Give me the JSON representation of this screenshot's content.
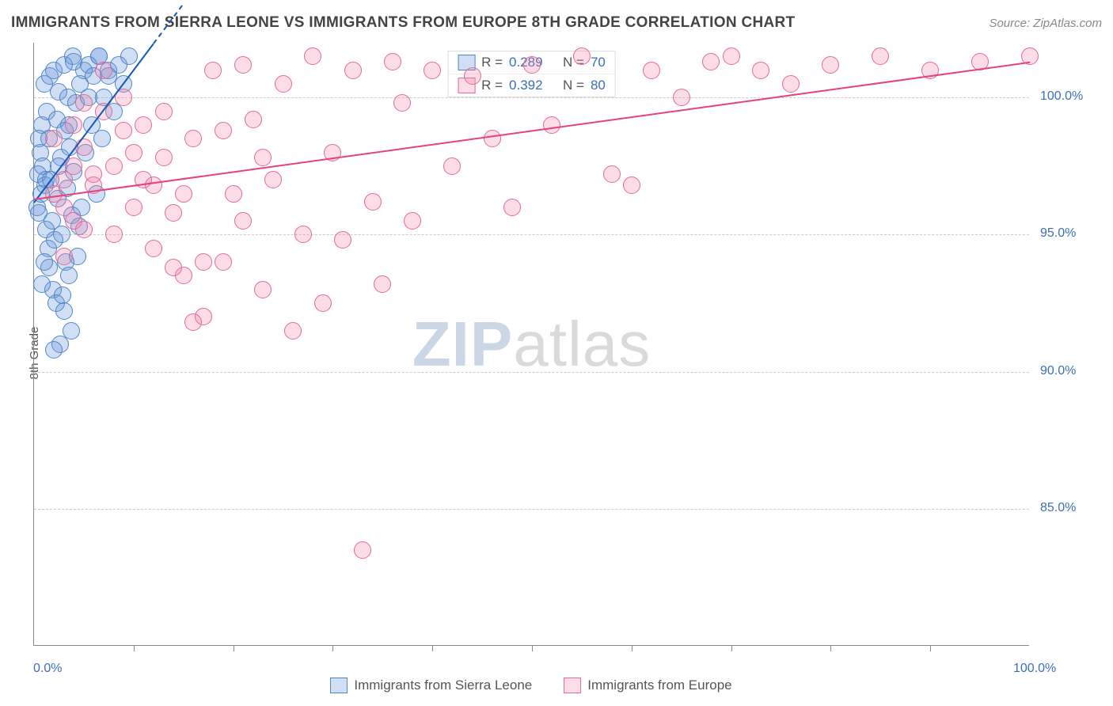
{
  "title": "IMMIGRANTS FROM SIERRA LEONE VS IMMIGRANTS FROM EUROPE 8TH GRADE CORRELATION CHART",
  "source": "Source: ZipAtlas.com",
  "ylabel": "8th Grade",
  "watermark": {
    "part1": "ZIP",
    "part2": "atlas"
  },
  "chart": {
    "type": "scatter",
    "xlim": [
      0,
      100
    ],
    "ylim": [
      80,
      102
    ],
    "x_axis_label_left": "0.0%",
    "x_axis_label_right": "100.0%",
    "xtick_positions": [
      10,
      20,
      30,
      40,
      50,
      60,
      70,
      80,
      90
    ],
    "ygrid": [
      {
        "value": 85,
        "label": "85.0%"
      },
      {
        "value": 90,
        "label": "90.0%"
      },
      {
        "value": 95,
        "label": "95.0%"
      },
      {
        "value": 100,
        "label": "100.0%"
      }
    ],
    "grid_color": "#cccccc",
    "background_color": "#ffffff",
    "marker_radius": 11,
    "marker_border_width": 1.2,
    "series": [
      {
        "name": "Immigrants from Sierra Leone",
        "fill_color": "rgba(100,150,220,0.30)",
        "stroke_color": "#4f86c6",
        "R": "0.289",
        "N": "70",
        "trend": {
          "x1": 0,
          "y1": 96.2,
          "x2": 12,
          "y2": 102,
          "dashed_extension": true
        },
        "trend_color": "#1258b8",
        "points": [
          [
            0.3,
            96.0
          ],
          [
            0.4,
            97.2
          ],
          [
            0.5,
            95.8
          ],
          [
            0.6,
            98.0
          ],
          [
            0.7,
            96.5
          ],
          [
            0.8,
            99.0
          ],
          [
            0.9,
            97.5
          ],
          [
            1.0,
            100.5
          ],
          [
            1.1,
            96.8
          ],
          [
            1.2,
            95.2
          ],
          [
            1.3,
            99.5
          ],
          [
            1.4,
            94.5
          ],
          [
            1.5,
            98.5
          ],
          [
            1.6,
            100.8
          ],
          [
            1.7,
            97.0
          ],
          [
            1.8,
            95.5
          ],
          [
            1.9,
            93.0
          ],
          [
            2.0,
            101.0
          ],
          [
            2.1,
            94.8
          ],
          [
            2.2,
            92.5
          ],
          [
            2.3,
            99.2
          ],
          [
            2.4,
            96.3
          ],
          [
            2.5,
            100.2
          ],
          [
            2.6,
            91.0
          ],
          [
            2.7,
            97.8
          ],
          [
            2.8,
            95.0
          ],
          [
            2.9,
            92.8
          ],
          [
            3.0,
            101.2
          ],
          [
            3.1,
            98.8
          ],
          [
            3.2,
            94.0
          ],
          [
            3.3,
            96.7
          ],
          [
            3.4,
            100.0
          ],
          [
            3.5,
            93.5
          ],
          [
            3.6,
            98.2
          ],
          [
            3.7,
            91.5
          ],
          [
            3.8,
            95.7
          ],
          [
            3.9,
            101.5
          ],
          [
            4.0,
            97.3
          ],
          [
            4.2,
            99.8
          ],
          [
            4.4,
            94.2
          ],
          [
            4.6,
            100.5
          ],
          [
            4.8,
            96.0
          ],
          [
            5.0,
            101.0
          ],
          [
            5.2,
            98.0
          ],
          [
            5.5,
            101.2
          ],
          [
            5.8,
            99.0
          ],
          [
            6.0,
            100.8
          ],
          [
            6.3,
            96.5
          ],
          [
            6.5,
            101.5
          ],
          [
            6.8,
            98.5
          ],
          [
            7.0,
            100.0
          ],
          [
            7.5,
            101.0
          ],
          [
            8.0,
            99.5
          ],
          [
            8.5,
            101.2
          ],
          [
            9.0,
            100.5
          ],
          [
            9.5,
            101.5
          ],
          [
            3.0,
            92.2
          ],
          [
            2.0,
            90.8
          ],
          [
            1.5,
            93.8
          ],
          [
            4.5,
            95.3
          ],
          [
            1.0,
            94.0
          ],
          [
            0.8,
            93.2
          ],
          [
            2.5,
            97.5
          ],
          [
            3.5,
            99.0
          ],
          [
            1.2,
            97.0
          ],
          [
            0.5,
            98.5
          ],
          [
            5.5,
            100.0
          ],
          [
            6.5,
            101.5
          ],
          [
            7.5,
            100.8
          ],
          [
            4.0,
            101.3
          ]
        ]
      },
      {
        "name": "Immigrants from Europe",
        "fill_color": "rgba(240,130,170,0.28)",
        "stroke_color": "#e06a9a",
        "R": "0.392",
        "N": "80",
        "trend": {
          "x1": 0,
          "y1": 96.3,
          "x2": 100,
          "y2": 101.3
        },
        "trend_color": "#e5427e",
        "points": [
          [
            2,
            96.5
          ],
          [
            3,
            97.0
          ],
          [
            4,
            95.5
          ],
          [
            5,
            98.2
          ],
          [
            6,
            96.8
          ],
          [
            7,
            99.5
          ],
          [
            8,
            97.5
          ],
          [
            9,
            98.8
          ],
          [
            10,
            96.0
          ],
          [
            11,
            99.0
          ],
          [
            12,
            94.5
          ],
          [
            13,
            97.8
          ],
          [
            14,
            95.8
          ],
          [
            15,
            93.5
          ],
          [
            16,
            98.5
          ],
          [
            17,
            92.0
          ],
          [
            18,
            101.0
          ],
          [
            19,
            94.0
          ],
          [
            20,
            96.5
          ],
          [
            21,
            101.2
          ],
          [
            22,
            99.2
          ],
          [
            23,
            93.0
          ],
          [
            24,
            97.0
          ],
          [
            25,
            100.5
          ],
          [
            26,
            91.5
          ],
          [
            27,
            95.0
          ],
          [
            28,
            101.5
          ],
          [
            29,
            92.5
          ],
          [
            30,
            98.0
          ],
          [
            31,
            94.8
          ],
          [
            32,
            101.0
          ],
          [
            33,
            83.5
          ],
          [
            34,
            96.2
          ],
          [
            35,
            93.2
          ],
          [
            36,
            101.3
          ],
          [
            37,
            99.8
          ],
          [
            38,
            95.5
          ],
          [
            40,
            101.0
          ],
          [
            42,
            97.5
          ],
          [
            44,
            100.8
          ],
          [
            46,
            98.5
          ],
          [
            48,
            96.0
          ],
          [
            50,
            101.2
          ],
          [
            52,
            99.0
          ],
          [
            55,
            101.5
          ],
          [
            58,
            97.2
          ],
          [
            60,
            96.8
          ],
          [
            62,
            101.0
          ],
          [
            65,
            100.0
          ],
          [
            68,
            101.3
          ],
          [
            70,
            101.5
          ],
          [
            73,
            101.0
          ],
          [
            76,
            100.5
          ],
          [
            80,
            101.2
          ],
          [
            85,
            101.5
          ],
          [
            90,
            101.0
          ],
          [
            95,
            101.3
          ],
          [
            100,
            101.5
          ],
          [
            5,
            99.8
          ],
          [
            7,
            101.0
          ],
          [
            3,
            94.2
          ],
          [
            4,
            99.0
          ],
          [
            6,
            97.2
          ],
          [
            8,
            95.0
          ],
          [
            10,
            98.0
          ],
          [
            12,
            96.8
          ],
          [
            2,
            98.5
          ],
          [
            3,
            96.0
          ],
          [
            4,
            97.5
          ],
          [
            5,
            95.2
          ],
          [
            9,
            100.0
          ],
          [
            11,
            97.0
          ],
          [
            13,
            99.5
          ],
          [
            15,
            96.5
          ],
          [
            17,
            94.0
          ],
          [
            19,
            98.8
          ],
          [
            21,
            95.5
          ],
          [
            23,
            97.8
          ],
          [
            14,
            93.8
          ],
          [
            16,
            91.8
          ]
        ]
      }
    ]
  },
  "legend_labels": {
    "R": "R =",
    "N": "N ="
  }
}
